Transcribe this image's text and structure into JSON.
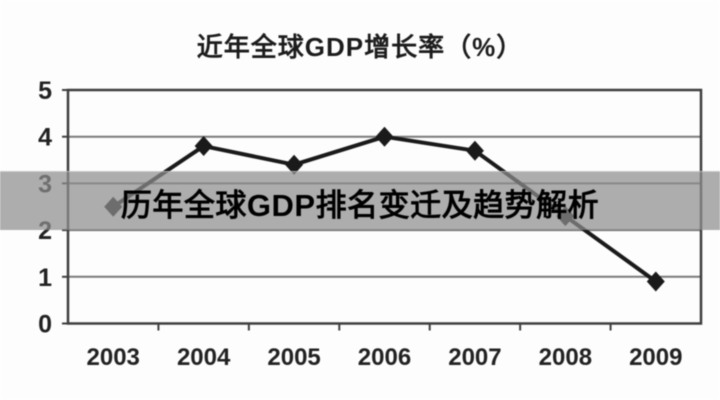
{
  "overlay_banner": {
    "text": "历年全球GDP排名变迁及趋势解析",
    "background": "rgba(142,142,142,0.72)",
    "text_color": "#000000"
  },
  "chart_data": {
    "type": "line",
    "title": "近年全球GDP增长率（%）",
    "categories": [
      "2003",
      "2004",
      "2005",
      "2006",
      "2007",
      "2008",
      "2009"
    ],
    "values": [
      2.5,
      3.8,
      3.4,
      4.0,
      3.7,
      2.3,
      0.9
    ],
    "xlabel": "",
    "ylabel": "",
    "ylim": [
      0,
      5
    ],
    "yticks": [
      0,
      1,
      2,
      3,
      4,
      5
    ],
    "grid": "horizontal",
    "legend_position": "none",
    "marker": "diamond",
    "line_color": "#1a1a1a",
    "marker_color": "#1a1a1a",
    "grid_color": "#7a7a7a",
    "border_color": "#3e3e3e",
    "tick_label_color": "#222222"
  }
}
